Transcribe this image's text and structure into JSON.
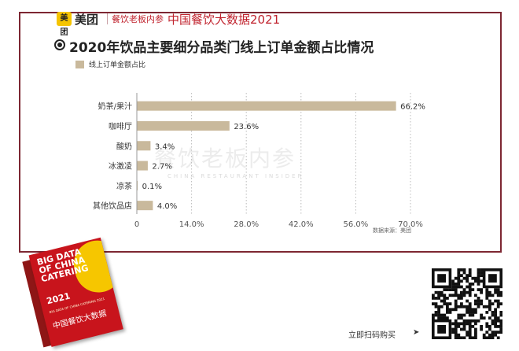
{
  "header": {
    "logo_mark": "美团",
    "logo_text": "美团",
    "brand2": "餐饮老板内参",
    "title": "中国餐饮大数据2021"
  },
  "chart_data": {
    "type": "bar",
    "orientation": "horizontal",
    "title": "2020年饮品主要细分品类门线上订单金额占比情况",
    "legend": [
      "线上订单金额占比"
    ],
    "categories": [
      "奶茶/果汁",
      "咖啡厅",
      "酸奶",
      "冰激凌",
      "凉茶",
      "其他饮品店"
    ],
    "values": [
      66.2,
      23.6,
      3.4,
      2.7,
      0.1,
      4.0
    ],
    "value_labels": [
      "66.2%",
      "23.6%",
      "3.4%",
      "2.7%",
      "0.1%",
      "4.0%"
    ],
    "xlim": [
      0,
      70
    ],
    "xticks": [
      0,
      14,
      28,
      42,
      56,
      70
    ],
    "xtick_labels": [
      "0",
      "14.0%",
      "28.0%",
      "42.0%",
      "56.0%",
      "70.0%"
    ],
    "grid": "vertical-dotted",
    "bar_color": "#c9b99c",
    "source": "数据来源：美团"
  },
  "watermark": {
    "main": "餐饮老板内参",
    "sub": "CHINA RESTAURANT INSIDER"
  },
  "book": {
    "title_en": "BIG DATA\nOF CHINA\nCATERING",
    "year": "2021",
    "subtitle": "BIG DATA OF CHINA CATERING 2021",
    "title_cn": "中国餐饮大数据"
  },
  "purchase": {
    "label": "立即扫码购买",
    "arrow": "➤"
  },
  "colors": {
    "frame": "#7d2732",
    "accent_red": "#c0222d",
    "bar": "#c9b99c",
    "logo_yellow": "#f5c400"
  }
}
